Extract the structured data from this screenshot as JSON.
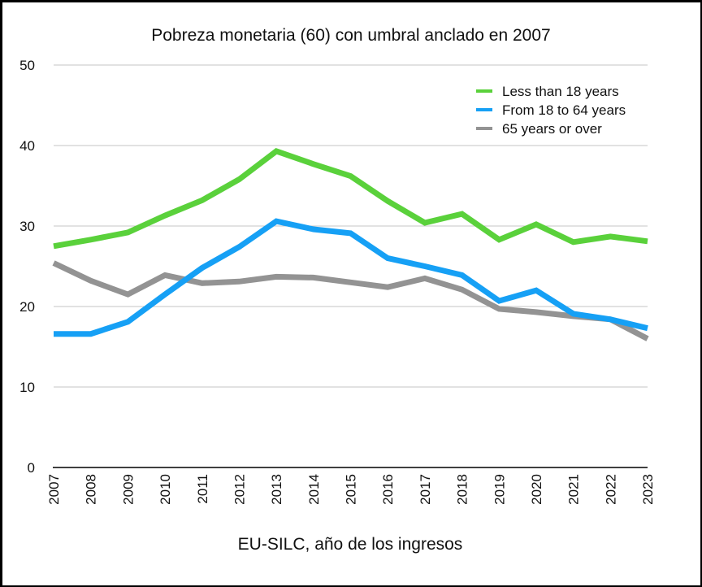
{
  "chart_data": {
    "type": "line",
    "title": "Pobreza monetaria (60) con umbral anclado en 2007",
    "xlabel": "EU-SILC, año de los ingresos",
    "ylabel": "",
    "ylim": [
      0,
      50
    ],
    "yticks": [
      "0",
      "10",
      "20",
      "30",
      "40",
      "50"
    ],
    "ytick_values": [
      0,
      10,
      20,
      30,
      40,
      50
    ],
    "grid": true,
    "legend_position": "top-right",
    "x": [
      "2007",
      "2008",
      "2009",
      "2010",
      "2011",
      "2012",
      "2013",
      "2014",
      "2015",
      "2016",
      "2017",
      "2018",
      "2019",
      "2020",
      "2021",
      "2022",
      "2023"
    ],
    "series": [
      {
        "name": "Less than 18 years",
        "color": "#5ad13b",
        "values": [
          27.5,
          28.3,
          29.2,
          31.3,
          33.2,
          35.8,
          39.3,
          37.7,
          36.2,
          33.1,
          30.4,
          31.5,
          28.3,
          30.2,
          28.0,
          28.7,
          28.1
        ]
      },
      {
        "name": "From 18 to 64 years",
        "color": "#16a0f5",
        "values": [
          16.6,
          16.6,
          18.1,
          21.5,
          24.8,
          27.4,
          30.6,
          29.6,
          29.1,
          26.0,
          25.0,
          23.9,
          20.7,
          22.0,
          19.1,
          18.4,
          17.3
        ]
      },
      {
        "name": "65 years or over",
        "color": "#939393",
        "values": [
          25.4,
          23.2,
          21.5,
          23.9,
          22.9,
          23.1,
          23.7,
          23.6,
          23.0,
          22.4,
          23.5,
          22.1,
          19.7,
          19.3,
          18.8,
          18.4,
          16.0
        ]
      }
    ]
  }
}
